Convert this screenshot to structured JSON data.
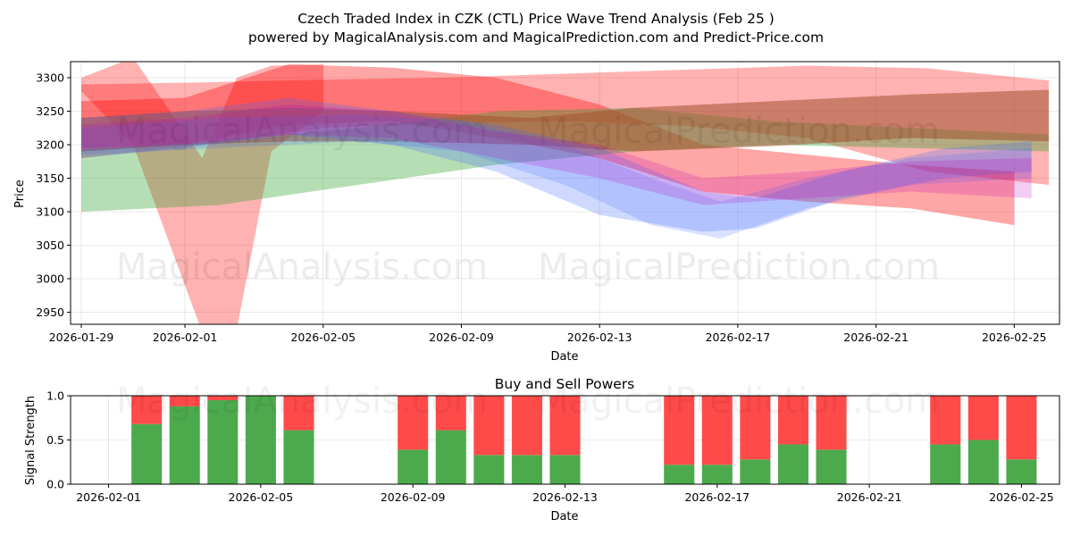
{
  "title": {
    "line1": "Czech Traded Index in CZK (CTL) Price Wave Trend Analysis (Feb 25 )",
    "line2": "powered by MagicalAnalysis.com and MagicalPrediction.com and Predict-Price.com"
  },
  "watermarks": {
    "left": "MagicalAnalysis.com",
    "right": "MagicalPrediction.com"
  },
  "colors": {
    "red_band": "#ff0000",
    "green_band": "#2ca02c",
    "blue_band": "#4169ff",
    "buy_bar": "#4caa4c",
    "sell_bar": "#ff4a4a"
  },
  "chart_data": [
    {
      "type": "area",
      "title": "",
      "xlabel": "Date",
      "ylabel": "Price",
      "ylim": [
        2932,
        3324
      ],
      "xlim": [
        "2026-01-29",
        "2026-02-26"
      ],
      "yticks": [
        2950,
        3000,
        3050,
        3100,
        3150,
        3200,
        3250,
        3300
      ],
      "xticks": [
        "2026-01-29",
        "2026-02-01",
        "2026-02-05",
        "2026-02-09",
        "2026-02-13",
        "2026-02-17",
        "2026-02-21",
        "2026-02-25"
      ],
      "grid": true,
      "series": [
        {
          "name": "red-wave-wide",
          "color": "#ff0000",
          "opacity": 0.3,
          "x": [
            0,
            3.5,
            7,
            10.5,
            14,
            17.5,
            21,
            24.5,
            28
          ],
          "upper": [
            3290,
            3293,
            3297,
            3300,
            3306,
            3312,
            3318,
            3314,
            3296
          ],
          "lower": [
            3180,
            3200,
            3225,
            3232,
            3235,
            3228,
            3210,
            3160,
            3140
          ]
        },
        {
          "name": "red-wave-spike",
          "color": "#ff0000",
          "opacity": 0.3,
          "x": [
            0,
            1.5,
            3.5,
            4.5,
            5.5,
            7
          ],
          "upper": [
            3300,
            3330,
            3180,
            3300,
            3318,
            3320
          ],
          "lower": [
            3280,
            3200,
            2920,
            2925,
            3190,
            3250
          ]
        },
        {
          "name": "red-wave-main",
          "color": "#ff0000",
          "opacity": 0.35,
          "x": [
            0,
            3,
            6,
            9,
            12,
            15,
            18,
            21,
            24,
            27
          ],
          "upper": [
            3265,
            3270,
            3320,
            3315,
            3300,
            3260,
            3200,
            3185,
            3170,
            3160
          ],
          "lower": [
            3190,
            3200,
            3230,
            3235,
            3210,
            3180,
            3130,
            3115,
            3105,
            3080
          ]
        },
        {
          "name": "green-wave",
          "color": "#2ca02c",
          "opacity": 0.35,
          "x": [
            0,
            4,
            8,
            12,
            16,
            20,
            24,
            28
          ],
          "upper": [
            3192,
            3205,
            3225,
            3250,
            3255,
            3235,
            3225,
            3215
          ],
          "lower": [
            3100,
            3110,
            3140,
            3170,
            3190,
            3200,
            3195,
            3190
          ]
        },
        {
          "name": "brown-wave",
          "color": "#a0522d",
          "opacity": 0.55,
          "x": [
            0,
            3,
            6,
            9,
            13,
            16,
            20,
            24,
            28
          ],
          "upper": [
            3240,
            3250,
            3255,
            3250,
            3240,
            3255,
            3265,
            3275,
            3282
          ],
          "lower": [
            3190,
            3200,
            3205,
            3205,
            3200,
            3190,
            3198,
            3210,
            3205
          ]
        },
        {
          "name": "blue-wave-a",
          "color": "#4169ff",
          "opacity": 0.25,
          "x": [
            0,
            3,
            6,
            9,
            12,
            15,
            18,
            19.5,
            22,
            25,
            27.5
          ],
          "upper": [
            3240,
            3250,
            3270,
            3250,
            3230,
            3195,
            3130,
            3120,
            3160,
            3195,
            3205
          ],
          "lower": [
            3180,
            3195,
            3215,
            3200,
            3160,
            3095,
            3070,
            3075,
            3120,
            3150,
            3160
          ]
        },
        {
          "name": "blue-wave-b",
          "color": "#4169ff",
          "opacity": 0.2,
          "x": [
            0,
            4,
            8,
            11,
            14,
            16.5,
            18.5,
            21,
            24,
            27.5
          ],
          "upper": [
            3225,
            3240,
            3245,
            3235,
            3200,
            3150,
            3115,
            3150,
            3180,
            3195
          ],
          "lower": [
            3185,
            3195,
            3205,
            3190,
            3140,
            3080,
            3060,
            3105,
            3140,
            3150
          ]
        },
        {
          "name": "magenta-wave",
          "color": "#c000c0",
          "opacity": 0.2,
          "x": [
            0,
            3,
            6,
            9,
            12,
            15,
            18,
            21,
            24,
            27.5
          ],
          "upper": [
            3230,
            3240,
            3260,
            3250,
            3220,
            3200,
            3150,
            3160,
            3175,
            3180
          ],
          "lower": [
            3195,
            3200,
            3215,
            3210,
            3180,
            3150,
            3110,
            3120,
            3130,
            3120
          ]
        }
      ]
    },
    {
      "type": "bar",
      "stacked": true,
      "title": "Buy and Sell Powers",
      "xlabel": "Date",
      "ylabel": "Signal Strength",
      "ylim": [
        0,
        1.0
      ],
      "yticks": [
        "0.0",
        "0.5",
        "1.0"
      ],
      "xlim": [
        "2026-01-31",
        "2026-02-26"
      ],
      "xticks": [
        "2026-02-01",
        "2026-02-05",
        "2026-02-09",
        "2026-02-13",
        "2026-02-17",
        "2026-02-21",
        "2026-02-25"
      ],
      "categories": [
        "2026-02-02",
        "2026-02-03",
        "2026-02-04",
        "2026-02-05",
        "2026-02-06",
        "2026-02-09",
        "2026-02-10",
        "2026-02-11",
        "2026-02-12",
        "2026-02-13",
        "2026-02-16",
        "2026-02-17",
        "2026-02-18",
        "2026-02-19",
        "2026-02-20",
        "2026-02-23",
        "2026-02-24",
        "2026-02-25"
      ],
      "series": [
        {
          "name": "Buy",
          "color": "#4caa4c",
          "values": [
            0.68,
            0.88,
            0.95,
            1.0,
            0.61,
            0.39,
            0.61,
            0.33,
            0.33,
            0.33,
            0.22,
            0.22,
            0.28,
            0.45,
            0.39,
            0.45,
            0.5,
            0.28
          ]
        },
        {
          "name": "Sell",
          "color": "#ff4a4a",
          "values": [
            0.32,
            0.12,
            0.05,
            0.0,
            0.39,
            0.61,
            0.39,
            0.67,
            0.67,
            0.67,
            0.78,
            0.78,
            0.72,
            0.55,
            0.61,
            0.55,
            0.5,
            0.72
          ]
        }
      ]
    }
  ]
}
